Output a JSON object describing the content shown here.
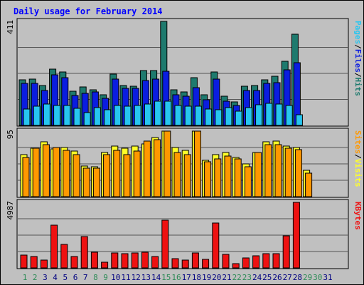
{
  "chart_data": {
    "type": "bar",
    "title": "Daily usage for February 2014",
    "colors": {
      "hits": "#1e7a6e",
      "files": "#0a1de0",
      "pages": "#27c6f0",
      "visits": "#ffff28",
      "sites": "#ff9800",
      "kbytes": "#ee1111",
      "title": "#0000ff",
      "weekday_label": "#000080",
      "weekend_label": "#2e8b57",
      "panel_bg": "#c0c0c0",
      "grid": "#555555"
    },
    "days": [
      "1",
      "2",
      "3",
      "4",
      "5",
      "6",
      "7",
      "8",
      "9",
      "10",
      "11",
      "12",
      "13",
      "14",
      "15",
      "16",
      "17",
      "18",
      "19",
      "20",
      "21",
      "22",
      "23",
      "24",
      "25",
      "26",
      "27",
      "28",
      "29",
      "30",
      "31"
    ],
    "weekend_days": [
      "1",
      "2",
      "8",
      "9",
      "15",
      "16",
      "22",
      "23",
      "29",
      "30"
    ],
    "panels": [
      {
        "id": "traffic",
        "ymax": 411,
        "ymax_label": "411",
        "side_label": [
          {
            "text": "Pages",
            "color_key": "pages"
          },
          {
            "text": "/",
            "color_key": "sep"
          },
          {
            "text": "Files",
            "color_key": "files"
          },
          {
            "text": "/",
            "color_key": "sep"
          },
          {
            "text": "Hits",
            "color_key": "hits"
          }
        ],
        "series": [
          {
            "name": "Hits",
            "color_key": "hits",
            "values": [
              181,
              183,
              159,
              222,
              210,
              134,
              151,
              140,
              122,
              204,
              159,
              156,
              217,
              217,
              411,
              140,
              132,
              190,
              121,
              211,
              116,
              92,
              154,
              159,
              181,
              194,
              254,
              359
            ]
          },
          {
            "name": "Files",
            "color_key": "files",
            "values": [
              165,
              166,
              138,
              200,
              190,
              119,
              127,
              132,
              108,
              183,
              146,
              146,
              176,
              183,
              213,
              121,
              116,
              150,
              101,
              183,
              97,
              78,
              138,
              138,
              165,
              168,
              220,
              247
            ]
          },
          {
            "name": "Pages",
            "color_key": "pages",
            "values": [
              64,
              75,
              84,
              80,
              78,
              67,
              51,
              71,
              61,
              79,
              77,
              80,
              84,
              95,
              95,
              80,
              75,
              77,
              64,
              62,
              69,
              56,
              69,
              83,
              86,
              84,
              79,
              42
            ]
          }
        ]
      },
      {
        "id": "visitors",
        "ymax": 95,
        "ymax_label": "95",
        "side_label": [
          {
            "text": "Sites",
            "color_key": "sites"
          },
          {
            "text": "/",
            "color_key": "sep"
          },
          {
            "text": "Visits",
            "color_key": "visits"
          }
        ],
        "series": [
          {
            "name": "Visits",
            "color_key": "visits",
            "values": [
              61,
              70,
              79,
              69,
              71,
              66,
              44,
              43,
              64,
              73,
              70,
              73,
              76,
              86,
              95,
              71,
              67,
              95,
              53,
              61,
              64,
              57,
              48,
              64,
              79,
              81,
              73,
              71,
              38
            ]
          },
          {
            "name": "Sites",
            "color_key": "sites",
            "values": [
              57,
              70,
              75,
              71,
              67,
              61,
              41,
              41,
              61,
              67,
              61,
              66,
              81,
              83,
              95,
              64,
              61,
              95,
              51,
              55,
              59,
              55,
              43,
              64,
              75,
              75,
              70,
              68,
              34
            ]
          }
        ]
      },
      {
        "id": "kbytes",
        "ymax": 4987,
        "ymax_label": "4987",
        "side_label": [
          {
            "text": "KBytes",
            "color_key": "kbytes"
          }
        ],
        "series": [
          {
            "name": "KBytes",
            "color_key": "kbytes",
            "values": [
              991,
              886,
              572,
              3278,
              1788,
              844,
              2362,
              1215,
              457,
              1156,
              1097,
              1155,
              1166,
              869,
              3623,
              696,
              597,
              1164,
              629,
              3430,
              1046,
              320,
              774,
              935,
              1063,
              1077,
              2445,
              4987
            ]
          }
        ]
      }
    ]
  }
}
